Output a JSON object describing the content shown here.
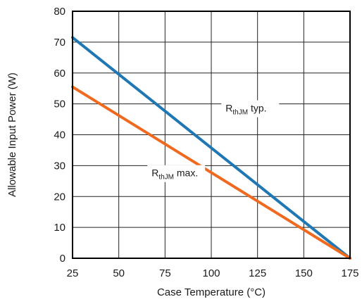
{
  "chart_data": {
    "type": "line",
    "title": "",
    "xlabel": "Case Temperature (°C)",
    "ylabel": "Allowable Input Power (W)",
    "xlim": [
      25,
      175
    ],
    "ylim": [
      0,
      80
    ],
    "xticks": [
      25,
      50,
      75,
      100,
      125,
      150,
      175
    ],
    "yticks": [
      0,
      10,
      20,
      30,
      40,
      50,
      60,
      70,
      80
    ],
    "grid": true,
    "series": [
      {
        "name": "RthJM typ.",
        "color": "#1f77b4",
        "x": [
          25,
          175
        ],
        "y": [
          71.5,
          0
        ]
      },
      {
        "name": "RthJM max.",
        "color": "#ef6a1f",
        "x": [
          25,
          175
        ],
        "y": [
          55.5,
          0
        ]
      }
    ],
    "annotations": [
      {
        "series": 0,
        "main": "R",
        "sub": "thJM",
        "suffix": " typ.",
        "at_x": 110,
        "at_y": 47.5
      },
      {
        "series": 1,
        "main": "R",
        "sub": "thJM",
        "suffix": " max.",
        "at_x": 70,
        "at_y": 26.5
      }
    ]
  }
}
